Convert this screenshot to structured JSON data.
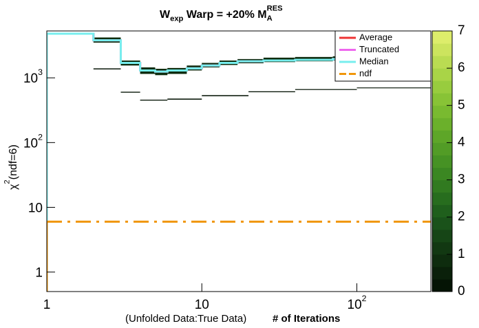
{
  "chart_data": {
    "type": "line",
    "title_parts": [
      {
        "text": "W",
        "shift": "none"
      },
      {
        "text": "exp",
        "shift": "sub"
      },
      {
        "text": " Warp = +20% M",
        "shift": "none"
      },
      {
        "text": "RES",
        "shift": "sup"
      },
      {
        "text": "A",
        "shift": "sub-under"
      }
    ],
    "ylabel_parts": [
      {
        "text": "χ",
        "shift": "none"
      },
      {
        "text": "2",
        "shift": "sup"
      },
      {
        "text": "(ndf=6)",
        "shift": "none"
      }
    ],
    "xlabel_note": "(Unfolded Data:True Data)",
    "xlabel": "# of Iterations",
    "xscale": "log",
    "yscale": "log",
    "xlim": [
      1,
      300
    ],
    "ylim": [
      0.5,
      5300
    ],
    "xticks": [
      1,
      10,
      {
        "value": 100,
        "label": "10",
        "sup": "2"
      }
    ],
    "yticks": [
      1,
      10,
      {
        "value": 100,
        "label": "10",
        "sup": "2"
      },
      {
        "value": 1000,
        "label": "10",
        "sup": "3"
      }
    ],
    "x": [
      1,
      2,
      3,
      4,
      5,
      6,
      8,
      10,
      13,
      17,
      25,
      40,
      70,
      150,
      300
    ],
    "series": [
      {
        "name": "Average",
        "color": "#ee3333",
        "dash": "solid",
        "values": [
          4800,
          3800,
          1700,
          1300,
          1250,
          1300,
          1400,
          1550,
          1700,
          1800,
          1850,
          1900,
          1950,
          2000,
          2000
        ]
      },
      {
        "name": "Truncated",
        "color": "#ee66ee",
        "dash": "solid",
        "values": [
          4800,
          3800,
          1700,
          1300,
          1250,
          1300,
          1400,
          1550,
          1700,
          1800,
          1850,
          1900,
          1950,
          2000,
          2000
        ]
      },
      {
        "name": "Median",
        "color": "#77eeee",
        "dash": "solid",
        "values": [
          4800,
          3800,
          1700,
          1300,
          1250,
          1300,
          1400,
          1550,
          1700,
          1800,
          1850,
          1900,
          1950,
          2000,
          2000
        ]
      },
      {
        "name": "ndf",
        "color": "#f0960a",
        "dash": "dashdot",
        "values": [
          6,
          6,
          6,
          6,
          6,
          6,
          6,
          6,
          6,
          6,
          6,
          6,
          6,
          6,
          6
        ]
      }
    ],
    "heatmap": [
      {
        "x": [
          2,
          3
        ],
        "y": [
          3500,
          4200
        ],
        "z": 0.8
      },
      {
        "x": [
          3,
          4
        ],
        "y": [
          1550,
          1850
        ],
        "z": 0.8
      },
      {
        "x": [
          4,
          5
        ],
        "y": [
          1150,
          1450
        ],
        "z": 0.8
      },
      {
        "x": [
          5,
          6
        ],
        "y": [
          1100,
          1380
        ],
        "z": 0.8
      },
      {
        "x": [
          6,
          8
        ],
        "y": [
          1150,
          1420
        ],
        "z": 0.8
      },
      {
        "x": [
          8,
          10
        ],
        "y": [
          1300,
          1550
        ],
        "z": 0.8
      },
      {
        "x": [
          10,
          13
        ],
        "y": [
          1450,
          1700
        ],
        "z": 0.8
      },
      {
        "x": [
          13,
          17
        ],
        "y": [
          1580,
          1850
        ],
        "z": 0.8
      },
      {
        "x": [
          17,
          25
        ],
        "y": [
          1680,
          1950
        ],
        "z": 0.8
      },
      {
        "x": [
          25,
          40
        ],
        "y": [
          1750,
          2050
        ],
        "z": 0.8
      },
      {
        "x": [
          40,
          70
        ],
        "y": [
          1800,
          2100
        ],
        "z": 0.8
      },
      {
        "x": [
          70,
          150
        ],
        "y": [
          1850,
          2150
        ],
        "z": 0.8
      },
      {
        "x": [
          150,
          300
        ],
        "y": [
          1900,
          2150
        ],
        "z": 0.8
      },
      {
        "x": [
          2,
          3
        ],
        "y": [
          1350,
          1400
        ],
        "z": 0.3
      },
      {
        "x": [
          3,
          4
        ],
        "y": [
          590,
          610
        ],
        "z": 0.3
      },
      {
        "x": [
          4,
          6
        ],
        "y": [
          445,
          460
        ],
        "z": 0.3
      },
      {
        "x": [
          6,
          10
        ],
        "y": [
          460,
          478
        ],
        "z": 0.3
      },
      {
        "x": [
          10,
          20
        ],
        "y": [
          520,
          540
        ],
        "z": 0.3
      },
      {
        "x": [
          20,
          40
        ],
        "y": [
          600,
          620
        ],
        "z": 0.3
      },
      {
        "x": [
          40,
          100
        ],
        "y": [
          650,
          670
        ],
        "z": 0.3
      },
      {
        "x": [
          100,
          300
        ],
        "y": [
          690,
          710
        ],
        "z": 0.3
      }
    ],
    "zlim": [
      0,
      7
    ],
    "zticks": [
      0,
      1,
      2,
      3,
      4,
      5,
      6,
      7
    ],
    "palette": [
      "#051405",
      "#0a200a",
      "#0e2c0e",
      "#123812",
      "#164516",
      "#1a521a",
      "#1f5f1c",
      "#276d1e",
      "#317a20",
      "#3b8722",
      "#469224",
      "#529c26",
      "#5ea628",
      "#6bb02b",
      "#79ba30",
      "#88c336",
      "#98cc3e",
      "#a9d447",
      "#badc52",
      "#ccE45e",
      "#dded6b"
    ],
    "legend": "top-right"
  }
}
